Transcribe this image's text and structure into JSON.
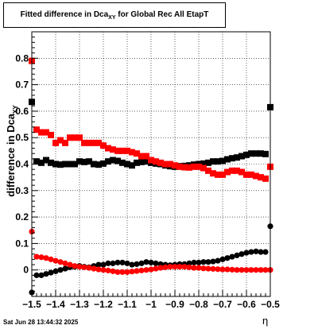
{
  "title": {
    "prefix": "Fitted difference in Dca",
    "subscript": "XY",
    "suffix": " for Global Rec All EtapT"
  },
  "footer_text": "Sat Jun 28 13:44:32 2025",
  "chart_data": {
    "type": "scatter",
    "title": "Fitted difference in Dca_XY for Global Rec All EtapT",
    "ylabel_main": "difference in Dca",
    "ylabel_sub": "XY",
    "xlabel": "η",
    "xlim": [
      -1.5,
      -0.5
    ],
    "ylim": [
      -0.1,
      0.9
    ],
    "grid": true,
    "x_ticks": [
      -1.5,
      -1.4,
      -1.3,
      -1.2,
      -1.1,
      -1.0,
      -0.9,
      -0.8,
      -0.7,
      -0.6,
      -0.5
    ],
    "x_tick_labels": [
      "−1.5",
      "−1.4",
      "−1.3",
      "−1.2",
      "−1.1",
      "−1",
      "−0.9",
      "−0.8",
      "−0.7",
      "−0.6",
      "−0.5"
    ],
    "y_ticks": [
      0,
      0.1,
      0.2,
      0.3,
      0.4,
      0.5,
      0.6,
      0.7,
      0.8
    ],
    "y_tick_labels": [
      "0",
      "0.1",
      "0.2",
      "0.3",
      "0.4",
      "0.5",
      "0.6",
      "0.7",
      "0.8"
    ],
    "series": [
      {
        "marker": "square",
        "color": "#000000",
        "points": [
          [
            -1.5,
            0.635
          ],
          [
            -1.48,
            0.41
          ],
          [
            -1.46,
            0.405
          ],
          [
            -1.44,
            0.415
          ],
          [
            -1.42,
            0.405
          ],
          [
            -1.4,
            0.4
          ],
          [
            -1.38,
            0.398
          ],
          [
            -1.36,
            0.4
          ],
          [
            -1.34,
            0.4
          ],
          [
            -1.32,
            0.4
          ],
          [
            -1.3,
            0.41
          ],
          [
            -1.28,
            0.408
          ],
          [
            -1.26,
            0.41
          ],
          [
            -1.24,
            0.4
          ],
          [
            -1.22,
            0.398
          ],
          [
            -1.2,
            0.402
          ],
          [
            -1.18,
            0.41
          ],
          [
            -1.16,
            0.415
          ],
          [
            -1.14,
            0.412
          ],
          [
            -1.12,
            0.405
          ],
          [
            -1.1,
            0.4
          ],
          [
            -1.08,
            0.395
          ],
          [
            -1.06,
            0.405
          ],
          [
            -1.04,
            0.408
          ],
          [
            -1.02,
            0.41
          ],
          [
            -1.0,
            0.405
          ],
          [
            -0.98,
            0.402
          ],
          [
            -0.96,
            0.4
          ],
          [
            -0.94,
            0.395
          ],
          [
            -0.92,
            0.392
          ],
          [
            -0.9,
            0.39
          ],
          [
            -0.88,
            0.392
          ],
          [
            -0.86,
            0.393
          ],
          [
            -0.84,
            0.395
          ],
          [
            -0.82,
            0.398
          ],
          [
            -0.8,
            0.4
          ],
          [
            -0.78,
            0.402
          ],
          [
            -0.76,
            0.405
          ],
          [
            -0.74,
            0.41
          ],
          [
            -0.72,
            0.41
          ],
          [
            -0.7,
            0.412
          ],
          [
            -0.68,
            0.418
          ],
          [
            -0.66,
            0.422
          ],
          [
            -0.64,
            0.425
          ],
          [
            -0.62,
            0.43
          ],
          [
            -0.6,
            0.435
          ],
          [
            -0.58,
            0.44
          ],
          [
            -0.56,
            0.44
          ],
          [
            -0.54,
            0.44
          ],
          [
            -0.52,
            0.438
          ],
          [
            -0.5,
            0.615
          ]
        ]
      },
      {
        "marker": "square",
        "color": "#ff0000",
        "points": [
          [
            -1.5,
            0.79
          ],
          [
            -1.48,
            0.53
          ],
          [
            -1.46,
            0.52
          ],
          [
            -1.44,
            0.52
          ],
          [
            -1.42,
            0.51
          ],
          [
            -1.4,
            0.48
          ],
          [
            -1.38,
            0.49
          ],
          [
            -1.36,
            0.48
          ],
          [
            -1.34,
            0.5
          ],
          [
            -1.32,
            0.5
          ],
          [
            -1.3,
            0.5
          ],
          [
            -1.28,
            0.48
          ],
          [
            -1.26,
            0.48
          ],
          [
            -1.24,
            0.48
          ],
          [
            -1.22,
            0.48
          ],
          [
            -1.2,
            0.47
          ],
          [
            -1.18,
            0.46
          ],
          [
            -1.16,
            0.455
          ],
          [
            -1.14,
            0.45
          ],
          [
            -1.12,
            0.45
          ],
          [
            -1.1,
            0.45
          ],
          [
            -1.08,
            0.445
          ],
          [
            -1.06,
            0.44
          ],
          [
            -1.04,
            0.43
          ],
          [
            -1.02,
            0.43
          ],
          [
            -1.0,
            0.415
          ],
          [
            -0.98,
            0.41
          ],
          [
            -0.96,
            0.405
          ],
          [
            -0.94,
            0.4
          ],
          [
            -0.92,
            0.4
          ],
          [
            -0.9,
            0.395
          ],
          [
            -0.88,
            0.39
          ],
          [
            -0.86,
            0.388
          ],
          [
            -0.84,
            0.387
          ],
          [
            -0.82,
            0.39
          ],
          [
            -0.8,
            0.39
          ],
          [
            -0.78,
            0.385
          ],
          [
            -0.76,
            0.375
          ],
          [
            -0.74,
            0.365
          ],
          [
            -0.72,
            0.36
          ],
          [
            -0.7,
            0.36
          ],
          [
            -0.68,
            0.37
          ],
          [
            -0.66,
            0.375
          ],
          [
            -0.64,
            0.375
          ],
          [
            -0.62,
            0.37
          ],
          [
            -0.6,
            0.36
          ],
          [
            -0.58,
            0.36
          ],
          [
            -0.56,
            0.355
          ],
          [
            -0.54,
            0.35
          ],
          [
            -0.52,
            0.345
          ],
          [
            -0.5,
            0.39
          ]
        ]
      },
      {
        "marker": "circle",
        "color": "#000000",
        "points": [
          [
            -1.5,
            -0.085
          ],
          [
            -1.48,
            -0.02
          ],
          [
            -1.46,
            -0.02
          ],
          [
            -1.44,
            -0.015
          ],
          [
            -1.42,
            -0.01
          ],
          [
            -1.4,
            -0.005
          ],
          [
            -1.38,
            0.0
          ],
          [
            -1.36,
            0.005
          ],
          [
            -1.34,
            0.01
          ],
          [
            -1.32,
            0.012
          ],
          [
            -1.3,
            0.015
          ],
          [
            -1.28,
            0.012
          ],
          [
            -1.26,
            0.01
          ],
          [
            -1.24,
            0.015
          ],
          [
            -1.22,
            0.02
          ],
          [
            -1.2,
            0.02
          ],
          [
            -1.18,
            0.025
          ],
          [
            -1.16,
            0.025
          ],
          [
            -1.14,
            0.028
          ],
          [
            -1.12,
            0.028
          ],
          [
            -1.1,
            0.025
          ],
          [
            -1.08,
            0.02
          ],
          [
            -1.06,
            0.022
          ],
          [
            -1.04,
            0.025
          ],
          [
            -1.02,
            0.03
          ],
          [
            -1.0,
            0.028
          ],
          [
            -0.98,
            0.025
          ],
          [
            -0.96,
            0.022
          ],
          [
            -0.94,
            0.02
          ],
          [
            -0.92,
            0.018
          ],
          [
            -0.9,
            0.02
          ],
          [
            -0.88,
            0.022
          ],
          [
            -0.86,
            0.022
          ],
          [
            -0.84,
            0.025
          ],
          [
            -0.82,
            0.028
          ],
          [
            -0.8,
            0.028
          ],
          [
            -0.78,
            0.03
          ],
          [
            -0.76,
            0.03
          ],
          [
            -0.74,
            0.032
          ],
          [
            -0.72,
            0.035
          ],
          [
            -0.7,
            0.04
          ],
          [
            -0.68,
            0.045
          ],
          [
            -0.66,
            0.05
          ],
          [
            -0.64,
            0.055
          ],
          [
            -0.62,
            0.06
          ],
          [
            -0.6,
            0.065
          ],
          [
            -0.58,
            0.068
          ],
          [
            -0.56,
            0.07
          ],
          [
            -0.54,
            0.068
          ],
          [
            -0.52,
            0.068
          ],
          [
            -0.5,
            0.165
          ]
        ]
      },
      {
        "marker": "circle",
        "color": "#ff0000",
        "points": [
          [
            -1.5,
            0.145
          ],
          [
            -1.48,
            0.05
          ],
          [
            -1.46,
            0.048
          ],
          [
            -1.44,
            0.045
          ],
          [
            -1.42,
            0.04
          ],
          [
            -1.4,
            0.035
          ],
          [
            -1.38,
            0.03
          ],
          [
            -1.36,
            0.025
          ],
          [
            -1.34,
            0.02
          ],
          [
            -1.32,
            0.015
          ],
          [
            -1.3,
            0.012
          ],
          [
            -1.28,
            0.01
          ],
          [
            -1.26,
            0.008
          ],
          [
            -1.24,
            0.005
          ],
          [
            -1.22,
            0.002
          ],
          [
            -1.2,
            0.0
          ],
          [
            -1.18,
            -0.002
          ],
          [
            -1.16,
            -0.005
          ],
          [
            -1.14,
            -0.008
          ],
          [
            -1.12,
            -0.008
          ],
          [
            -1.1,
            -0.008
          ],
          [
            -1.08,
            -0.006
          ],
          [
            -1.06,
            -0.004
          ],
          [
            -1.04,
            -0.002
          ],
          [
            -1.02,
            0.0
          ],
          [
            -1.0,
            0.002
          ],
          [
            -0.98,
            0.005
          ],
          [
            -0.96,
            0.008
          ],
          [
            -0.94,
            0.01
          ],
          [
            -0.92,
            0.012
          ],
          [
            -0.9,
            0.012
          ],
          [
            -0.88,
            0.012
          ],
          [
            -0.86,
            0.012
          ],
          [
            -0.84,
            0.01
          ],
          [
            -0.82,
            0.008
          ],
          [
            -0.8,
            0.008
          ],
          [
            -0.78,
            0.006
          ],
          [
            -0.76,
            0.005
          ],
          [
            -0.74,
            0.004
          ],
          [
            -0.72,
            0.003
          ],
          [
            -0.7,
            0.002
          ],
          [
            -0.68,
            0.002
          ],
          [
            -0.66,
            0.001
          ],
          [
            -0.64,
            0.0
          ],
          [
            -0.62,
            0.0
          ],
          [
            -0.6,
            0.0
          ],
          [
            -0.58,
            0.0
          ],
          [
            -0.56,
            0.0
          ],
          [
            -0.54,
            0.0
          ],
          [
            -0.52,
            0.0
          ],
          [
            -0.5,
            0.0
          ]
        ]
      }
    ]
  }
}
